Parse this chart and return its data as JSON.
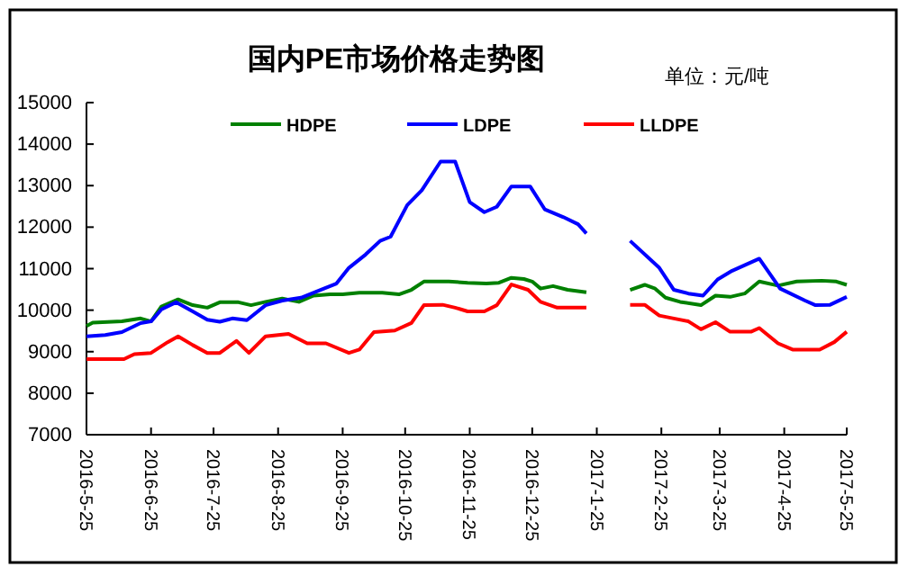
{
  "chart_data": {
    "type": "line",
    "title": "国内PE市场价格走势图",
    "annotations": [
      "单位：元/吨"
    ],
    "xlim": [
      "2016-05-25",
      "2017-05-25"
    ],
    "xticks": [
      {
        "value": "2016-05-25",
        "label": "2016-5-25"
      },
      {
        "value": "2016-06-25",
        "label": "2016-6-25"
      },
      {
        "value": "2016-07-25",
        "label": "2016-7-25"
      },
      {
        "value": "2016-08-25",
        "label": "2016-8-25"
      },
      {
        "value": "2016-09-25",
        "label": "2016-9-25"
      },
      {
        "value": "2016-10-25",
        "label": "2016-10-25"
      },
      {
        "value": "2016-11-25",
        "label": "2016-11-25"
      },
      {
        "value": "2016-12-25",
        "label": "2016-12-25"
      },
      {
        "value": "2017-01-25",
        "label": "2017-1-25"
      },
      {
        "value": "2017-02-25",
        "label": "2017-2-25"
      },
      {
        "value": "2017-03-25",
        "label": "2017-3-25"
      },
      {
        "value": "2017-04-25",
        "label": "2017-4-25"
      },
      {
        "value": "2017-05-25",
        "label": "2017-5-25"
      }
    ],
    "ylim": [
      7000,
      15000
    ],
    "yticks": [
      7000,
      8000,
      9000,
      10000,
      11000,
      12000,
      13000,
      14000,
      15000
    ],
    "legend": "top",
    "grid": false,
    "marker": "none",
    "line_style": "solid",
    "series": [
      {
        "name": "HDPE",
        "color": "#008000",
        "x": [
          "2016-05-25",
          "2016-05-28",
          "2016-06-11",
          "2016-06-20",
          "2016-06-25",
          "2016-06-30",
          "2016-07-08",
          "2016-07-15",
          "2016-07-22",
          "2016-07-28",
          "2016-08-06",
          "2016-08-12",
          "2016-08-19",
          "2016-08-27",
          "2016-09-04",
          "2016-09-11",
          "2016-09-19",
          "2016-09-25",
          "2016-10-03",
          "2016-10-14",
          "2016-10-22",
          "2016-10-28",
          "2016-11-03",
          "2016-11-15",
          "2016-11-24",
          "2016-12-03",
          "2016-12-09",
          "2016-12-15",
          "2016-12-21",
          "2016-12-25",
          "2016-12-29",
          "2017-01-04",
          "2017-01-11",
          "2017-01-20",
          "2017-02-01",
          "2017-02-10",
          "2017-02-17",
          "2017-02-22",
          "2017-02-27",
          "2017-03-06",
          "2017-03-16",
          "2017-03-23",
          "2017-03-30",
          "2017-04-06",
          "2017-04-13",
          "2017-04-22",
          "2017-05-01",
          "2017-05-13",
          "2017-05-20",
          "2017-05-25"
        ],
        "values": [
          9620,
          9700,
          9730,
          9800,
          9730,
          10090,
          10260,
          10120,
          10060,
          10190,
          10190,
          10120,
          10200,
          10280,
          10200,
          10350,
          10380,
          10380,
          10420,
          10420,
          10380,
          10490,
          10690,
          10690,
          10660,
          10640,
          10660,
          10780,
          10750,
          10690,
          10520,
          10580,
          10490,
          10430,
          null,
          10490,
          10610,
          10520,
          10300,
          10200,
          10120,
          10350,
          10320,
          10400,
          10690,
          10590,
          10690,
          10710,
          10690,
          10610
        ]
      },
      {
        "name": "LDPE",
        "color": "#0000ff",
        "x": [
          "2016-05-25",
          "2016-06-03",
          "2016-06-11",
          "2016-06-20",
          "2016-06-25",
          "2016-06-30",
          "2016-07-07",
          "2016-07-15",
          "2016-07-22",
          "2016-07-28",
          "2016-08-03",
          "2016-08-10",
          "2016-08-19",
          "2016-08-27",
          "2016-09-05",
          "2016-09-16",
          "2016-09-22",
          "2016-09-28",
          "2016-10-06",
          "2016-10-13",
          "2016-10-18",
          "2016-10-26",
          "2016-11-02",
          "2016-11-11",
          "2016-11-18",
          "2016-11-25",
          "2016-12-02",
          "2016-12-08",
          "2016-12-15",
          "2016-12-24",
          "2016-12-31",
          "2017-01-09",
          "2017-01-16",
          "2017-01-20",
          "2017-02-01",
          "2017-02-10",
          "2017-02-24",
          "2017-03-03",
          "2017-03-10",
          "2017-03-17",
          "2017-03-24",
          "2017-03-31",
          "2017-04-13",
          "2017-04-23",
          "2017-05-05",
          "2017-05-10",
          "2017-05-17",
          "2017-05-25"
        ],
        "values": [
          9370,
          9400,
          9470,
          9690,
          9730,
          10020,
          10190,
          9970,
          9770,
          9720,
          9800,
          9760,
          10120,
          10230,
          10300,
          10520,
          10640,
          11020,
          11340,
          11670,
          11770,
          12530,
          12890,
          13580,
          13580,
          12600,
          12360,
          12490,
          12980,
          12980,
          12430,
          12240,
          12070,
          11850,
          null,
          11670,
          11020,
          10490,
          10400,
          10350,
          10740,
          10950,
          11240,
          10520,
          10230,
          10120,
          10130,
          10320
        ]
      },
      {
        "name": "LLDPE",
        "color": "#ff0000",
        "x": [
          "2016-05-25",
          "2016-06-12",
          "2016-06-17",
          "2016-06-25",
          "2016-07-03",
          "2016-07-08",
          "2016-07-15",
          "2016-07-22",
          "2016-07-28",
          "2016-08-05",
          "2016-08-11",
          "2016-08-19",
          "2016-08-30",
          "2016-09-08",
          "2016-09-17",
          "2016-09-28",
          "2016-10-03",
          "2016-10-10",
          "2016-10-20",
          "2016-10-28",
          "2016-11-03",
          "2016-11-12",
          "2016-11-18",
          "2016-11-24",
          "2016-12-02",
          "2016-12-08",
          "2016-12-15",
          "2016-12-23",
          "2016-12-29",
          "2017-01-06",
          "2017-01-20",
          "2017-02-01",
          "2017-02-10",
          "2017-02-17",
          "2017-02-24",
          "2017-03-03",
          "2017-03-10",
          "2017-03-16",
          "2017-03-23",
          "2017-03-30",
          "2017-04-09",
          "2017-04-13",
          "2017-04-22",
          "2017-04-29",
          "2017-05-12",
          "2017-05-19",
          "2017-05-25"
        ],
        "values": [
          8820,
          8820,
          8940,
          8970,
          9230,
          9370,
          9160,
          8970,
          8970,
          9260,
          8970,
          9370,
          9430,
          9200,
          9200,
          8970,
          9050,
          9470,
          9510,
          9690,
          10120,
          10130,
          10060,
          9970,
          9970,
          10120,
          10620,
          10490,
          10200,
          10060,
          10060,
          null,
          10130,
          10130,
          9870,
          9800,
          9730,
          9540,
          9710,
          9480,
          9480,
          9570,
          9200,
          9050,
          9050,
          9230,
          9480
        ]
      }
    ]
  }
}
